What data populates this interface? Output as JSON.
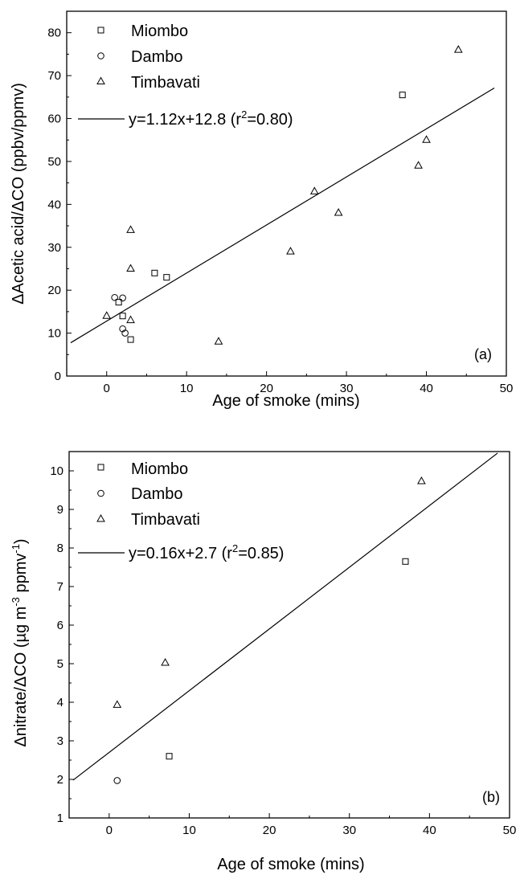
{
  "chart_data": [
    {
      "type": "scatter",
      "panel_label": "(a)",
      "xlabel": "Age of smoke (mins)",
      "ylabel": "ΔAcetic acid/ΔCO (ppbv/ppmv)",
      "xlim": [
        -5,
        50
      ],
      "ylim": [
        0,
        85
      ],
      "x_ticks": [
        0,
        10,
        20,
        30,
        40,
        50
      ],
      "y_ticks": [
        0,
        10,
        20,
        30,
        40,
        50,
        60,
        70,
        80
      ],
      "legend_position": "top-left",
      "series": [
        {
          "name": "Miombo",
          "marker": "square",
          "points": [
            [
              1.5,
              17.2
            ],
            [
              2,
              14
            ],
            [
              3,
              8.5
            ],
            [
              6,
              24
            ],
            [
              7.5,
              23
            ],
            [
              37,
              65.5
            ]
          ]
        },
        {
          "name": "Dambo",
          "marker": "circle",
          "points": [
            [
              1,
              18.3
            ],
            [
              2,
              18.2
            ],
            [
              2,
              11
            ],
            [
              2.3,
              10
            ]
          ]
        },
        {
          "name": "Timbavati",
          "marker": "triangle",
          "points": [
            [
              0,
              14
            ],
            [
              3,
              13
            ],
            [
              3,
              25
            ],
            [
              3,
              34
            ],
            [
              14,
              8
            ],
            [
              23,
              29
            ],
            [
              26,
              43
            ],
            [
              29,
              38
            ],
            [
              39,
              49
            ],
            [
              40,
              55
            ],
            [
              44,
              76
            ]
          ]
        }
      ],
      "fit": {
        "label_prefix": "y=1.12x+12.8 (r",
        "label_sup": "2",
        "label_suffix": "=0.80)",
        "slope": 1.12,
        "intercept": 12.8,
        "x_range": [
          -4.5,
          48.5
        ]
      }
    },
    {
      "type": "scatter",
      "panel_label": "(b)",
      "xlabel": "Age of smoke (mins)",
      "ylabel_main": "Δnitrate/ΔCO (µg m",
      "ylabel_sup1": "-3",
      "ylabel_mid": " ppmv",
      "ylabel_sup2": "-1",
      "ylabel_end": ")",
      "xlim": [
        -5,
        50
      ],
      "ylim": [
        1,
        10.5
      ],
      "x_ticks": [
        0,
        10,
        20,
        30,
        40,
        50
      ],
      "y_ticks": [
        1,
        2,
        3,
        4,
        5,
        6,
        7,
        8,
        9,
        10
      ],
      "legend_position": "top-left",
      "series": [
        {
          "name": "Miombo",
          "marker": "square",
          "points": [
            [
              7.5,
              2.6
            ],
            [
              37,
              7.65
            ]
          ]
        },
        {
          "name": "Dambo",
          "marker": "circle",
          "points": [
            [
              1,
              1.97
            ]
          ]
        },
        {
          "name": "Timbavati",
          "marker": "triangle",
          "points": [
            [
              1,
              3.93
            ],
            [
              7,
              5.02
            ],
            [
              39,
              9.73
            ]
          ]
        }
      ],
      "fit": {
        "label_prefix": "y=0.16x+2.7 (r",
        "label_sup": "2",
        "label_suffix": "=0.85)",
        "slope": 0.16,
        "intercept": 2.7,
        "x_range": [
          -4.5,
          48.5
        ]
      }
    }
  ]
}
